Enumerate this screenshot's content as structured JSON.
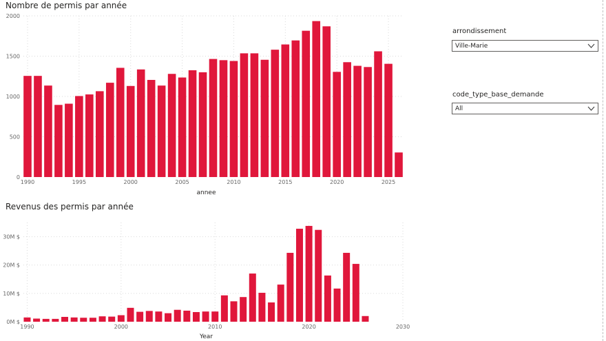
{
  "colors": {
    "bar": "#e0173b",
    "grid": "#d9d9d9"
  },
  "slicers": [
    {
      "label": "arrondissement",
      "value": "Ville-Marie",
      "icon": "chevron-down-icon"
    },
    {
      "label": "code_type_base_demande",
      "value": "All",
      "icon": "chevron-down-icon"
    }
  ],
  "chart_data": [
    {
      "type": "bar",
      "title": "Nombre de permis par année",
      "xlabel": "annee",
      "ylabel": "",
      "xlim": [
        1989.6,
        2026.4
      ],
      "ylim": [
        0,
        2000
      ],
      "x_ticks": [
        1990,
        1995,
        2000,
        2005,
        2010,
        2015,
        2020,
        2025
      ],
      "y_ticks": [
        0,
        500,
        1000,
        1500,
        2000
      ],
      "y_tick_labels": [
        "0",
        "500",
        "1000",
        "1500",
        "2000"
      ],
      "grid": true,
      "x": [
        1990,
        1991,
        1992,
        1993,
        1994,
        1995,
        1996,
        1997,
        1998,
        1999,
        2000,
        2001,
        2002,
        2003,
        2004,
        2005,
        2006,
        2007,
        2008,
        2009,
        2010,
        2011,
        2012,
        2013,
        2014,
        2015,
        2016,
        2017,
        2018,
        2019,
        2020,
        2021,
        2022,
        2023,
        2024,
        2025,
        2026
      ],
      "values": [
        1255,
        1255,
        1135,
        895,
        910,
        1005,
        1025,
        1065,
        1170,
        1355,
        1130,
        1335,
        1205,
        1135,
        1280,
        1235,
        1325,
        1300,
        1465,
        1450,
        1440,
        1535,
        1535,
        1455,
        1580,
        1645,
        1695,
        1815,
        1935,
        1870,
        1305,
        1425,
        1380,
        1365,
        1560,
        1405,
        305
      ]
    },
    {
      "type": "bar",
      "title": "Revenus des permis par année",
      "xlabel": "Year",
      "ylabel": "",
      "xlim": [
        1989.6,
        2030
      ],
      "ylim": [
        0,
        35
      ],
      "x_ticks": [
        1990,
        2000,
        2010,
        2020,
        2030
      ],
      "y_ticks": [
        0,
        10,
        20,
        30
      ],
      "y_tick_labels": [
        "0M $",
        "10M $",
        "20M $",
        "30M $"
      ],
      "grid": true,
      "x": [
        1990,
        1991,
        1992,
        1993,
        1994,
        1995,
        1996,
        1997,
        1998,
        1999,
        2000,
        2001,
        2002,
        2003,
        2004,
        2005,
        2006,
        2007,
        2008,
        2009,
        2010,
        2011,
        2012,
        2013,
        2014,
        2015,
        2016,
        2017,
        2018,
        2019,
        2020,
        2021,
        2022,
        2023,
        2024,
        2025,
        2026
      ],
      "values": [
        1.5,
        1.1,
        1.0,
        1.0,
        1.7,
        1.5,
        1.4,
        1.4,
        1.9,
        1.8,
        2.3,
        4.9,
        3.5,
        3.8,
        3.6,
        3.0,
        4.2,
        3.9,
        3.4,
        3.6,
        3.6,
        9.3,
        7.2,
        8.7,
        17.0,
        10.2,
        6.8,
        13.1,
        24.3,
        32.8,
        33.8,
        32.4,
        16.3,
        11.7,
        24.3,
        20.4,
        2.0
      ]
    }
  ]
}
